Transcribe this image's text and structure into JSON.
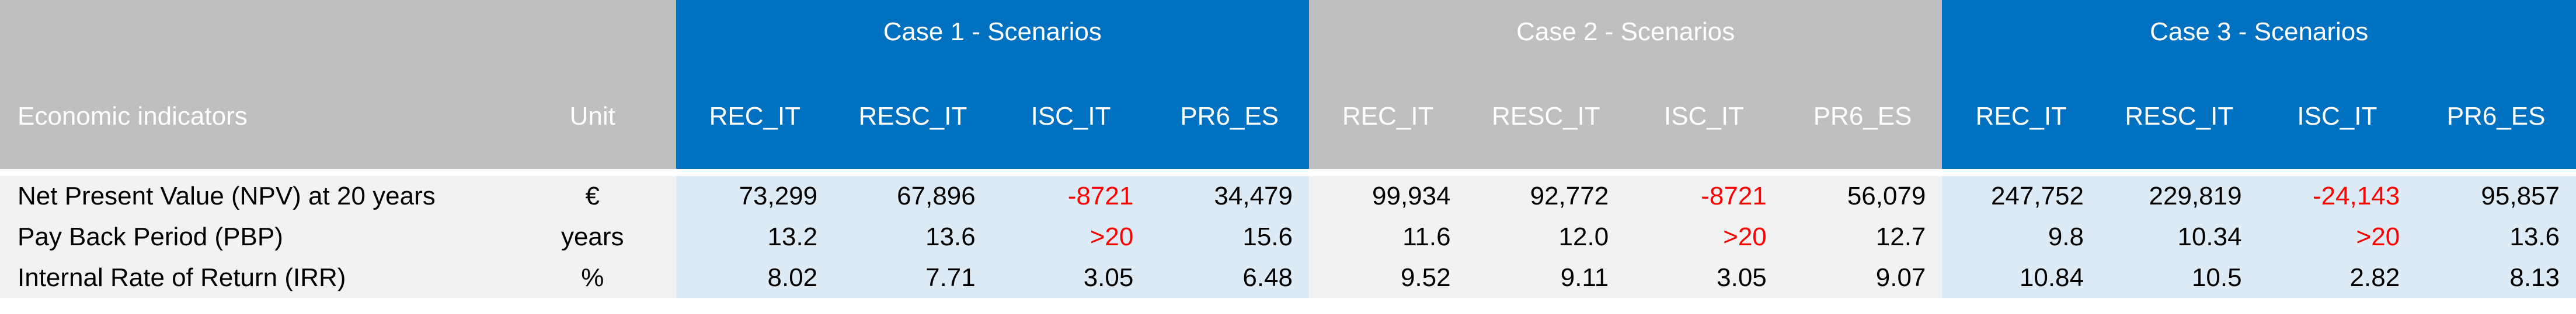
{
  "header": {
    "indicator_label": "Economic indicators",
    "unit_label": "Unit",
    "cases": [
      {
        "title": "Case 1 - Scenarios",
        "scenarios": [
          "REC_IT",
          "RESC_IT",
          "ISC_IT",
          "PR6_ES"
        ]
      },
      {
        "title": "Case 2 -  Scenarios",
        "scenarios": [
          "REC_IT",
          "RESC_IT",
          "ISC_IT",
          "PR6_ES"
        ]
      },
      {
        "title": "Case 3 - Scenarios",
        "scenarios": [
          "REC_IT",
          "RESC_IT",
          "ISC_IT",
          "PR6_ES"
        ]
      }
    ]
  },
  "rows": [
    {
      "label": "Net Present Value (NPV) at 20 years",
      "unit": "€",
      "values": [
        "73,299",
        "67,896",
        "-8721",
        "34,479",
        "99,934",
        "92,772",
        "-8721",
        "56,079",
        "247,752",
        "229,819",
        "-24,143",
        "95,857"
      ]
    },
    {
      "label": "Pay Back Period (PBP)",
      "unit": "years",
      "values": [
        "13.2",
        "13.6",
        ">20",
        "15.6",
        "11.6",
        "12.0",
        ">20",
        "12.7",
        "9.8",
        "10.34",
        ">20",
        "13.6"
      ]
    },
    {
      "label": "Internal Rate of Return (IRR)",
      "unit": "%",
      "values": [
        "8.02",
        "7.71",
        "3.05",
        "6.48",
        "9.52",
        "9.11",
        "3.05",
        "9.07",
        "10.84",
        "10.5",
        "2.82",
        "8.13"
      ]
    }
  ],
  "colors": {
    "case_blue": "#0070c0",
    "case_grey": "#bfbfbf",
    "light_blue_cells": "#ddebf7",
    "light_grey_cells": "#f2f2f2",
    "negative_red": "#ff0000"
  }
}
